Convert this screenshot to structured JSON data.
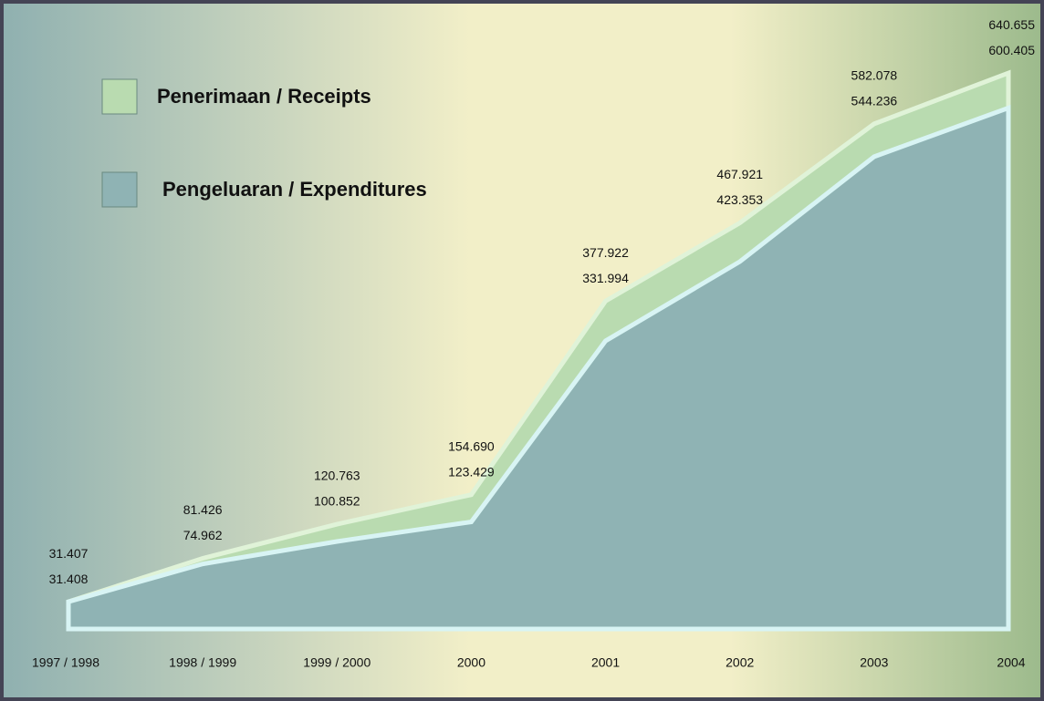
{
  "chart_data": {
    "type": "area",
    "categories": [
      "1997 / 1998",
      "1998 / 1999",
      "1999 / 2000",
      "2000",
      "2001",
      "2002",
      "2003",
      "2004"
    ],
    "series": [
      {
        "name": "Penerimaan / Receipts",
        "color": "#b9dbb0",
        "values": [
          31.407,
          81.426,
          120.763,
          154.69,
          377.922,
          467.921,
          582.078,
          640.655
        ],
        "value_labels": [
          "31.407",
          "81.426",
          "120.763",
          "154.690",
          "377.922",
          "467.921",
          "582.078",
          "640.655"
        ]
      },
      {
        "name": "Pengeluaran / Expenditures",
        "color": "#8fb3b4",
        "values": [
          31.408,
          74.962,
          100.852,
          123.429,
          331.994,
          423.353,
          544.236,
          600.405
        ],
        "value_labels": [
          "31.408",
          "74.962",
          "100.852",
          "123.429",
          "331.994",
          "423.353",
          "544.236",
          "600.405"
        ]
      }
    ]
  }
}
